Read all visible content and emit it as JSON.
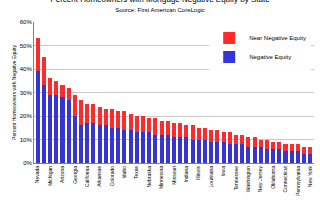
{
  "chart_data": {
    "type": "bar",
    "title": "Percent Homeowners with Mortgage Negative Equity by State",
    "subtitle": "Source: First American CoreLogic",
    "y_label": "Percent Homeowners with Negative Equity",
    "stacked": true,
    "grid": true,
    "legend": "top right",
    "categories": [
      "Nevada",
      null,
      "Michigan",
      null,
      "Arizona",
      null,
      "Georgia",
      null,
      "California",
      null,
      "Arkansas",
      null,
      "Colorado",
      null,
      "Idaho",
      null,
      "Texas",
      null,
      "Nebraska",
      null,
      "Minnesota",
      null,
      "Missouri",
      null,
      "Indiana",
      null,
      "Illinois",
      null,
      "Louisiana",
      null,
      "Iowa",
      null,
      "Tennessee",
      null,
      "Washington",
      null,
      "New Jersey",
      null,
      "Oklahoma",
      null,
      "Connecticut",
      null,
      "Pennsylvania",
      null,
      "New York"
    ],
    "series": [
      {
        "name": "Negative Equity",
        "color": "#3535d6",
        "values": [
          39,
          33,
          29,
          29,
          28,
          27,
          20,
          16,
          17,
          17,
          16,
          16,
          15,
          15,
          14,
          14,
          13,
          13,
          13,
          12,
          12,
          12,
          11,
          11,
          11,
          10,
          10,
          10,
          9,
          9,
          9,
          8,
          8,
          8,
          7,
          7,
          7,
          6,
          6,
          6,
          5,
          5,
          5,
          4,
          4
        ]
      },
      {
        "name": "Near Negative Equity",
        "color": "#ff2a2a",
        "values": [
          14,
          12,
          7,
          6,
          5,
          5,
          9,
          11,
          8,
          8,
          8,
          7,
          8,
          7,
          8,
          7,
          7,
          7,
          6,
          7,
          6,
          6,
          6,
          6,
          5,
          6,
          5,
          5,
          5,
          5,
          4,
          5,
          4,
          4,
          4,
          4,
          3,
          4,
          3,
          3,
          3,
          3,
          3,
          3,
          3
        ]
      }
    ],
    "ylim": [
      0,
      60
    ],
    "yticks": [
      {
        "value": 0,
        "label": "0%"
      },
      {
        "value": 10,
        "label": "10%"
      },
      {
        "value": 20,
        "label": "20%"
      },
      {
        "value": 30,
        "label": "30%"
      },
      {
        "value": 40,
        "label": "40%"
      },
      {
        "value": 50,
        "label": "50%"
      },
      {
        "value": 60,
        "label": "60%"
      }
    ]
  }
}
